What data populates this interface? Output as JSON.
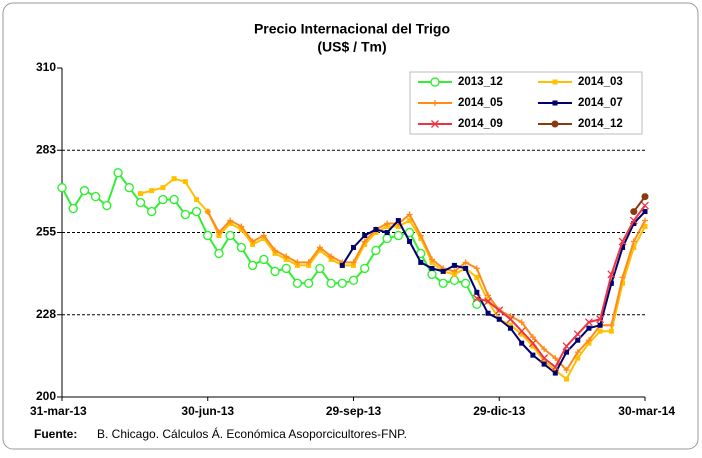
{
  "chart_data": {
    "type": "line",
    "title": "Precio Internacional del Trigo",
    "subtitle": "(US$ / Tm)",
    "categories": [
      "31-mar-13",
      null,
      null,
      null,
      null,
      null,
      null,
      null,
      null,
      null,
      null,
      null,
      null,
      "30-jun-13",
      null,
      null,
      null,
      null,
      null,
      null,
      null,
      null,
      null,
      null,
      null,
      null,
      "29-sep-13",
      null,
      null,
      null,
      null,
      null,
      null,
      null,
      null,
      null,
      null,
      null,
      null,
      "29-dic-13",
      null,
      null,
      null,
      null,
      null,
      null,
      null,
      null,
      null,
      null,
      null,
      null,
      "30-mar-14"
    ],
    "ylim": [
      200,
      310
    ],
    "yticks": [
      200,
      {
        "value": 227.5,
        "label": "228"
      },
      255,
      {
        "value": 282.5,
        "label": "283"
      },
      310
    ],
    "grid": true,
    "legend": "upper right",
    "series": [
      {
        "name": "2013_12",
        "color": "#33ee33",
        "marker": "open-circle",
        "values": [
          270,
          263,
          269,
          267,
          264,
          275,
          270,
          265,
          262,
          266,
          266,
          261,
          262,
          254,
          248,
          254,
          250,
          244,
          246,
          242,
          243,
          238,
          238,
          243,
          238,
          238,
          239,
          243,
          249,
          253,
          254,
          255,
          248,
          241,
          238,
          239,
          238,
          231,
          null,
          null,
          null,
          null,
          null,
          null,
          null,
          null,
          null,
          null,
          null,
          null,
          null,
          null,
          null
        ]
      },
      {
        "name": "2014_03",
        "color": "#ffc000",
        "marker": "square",
        "values": [
          null,
          null,
          null,
          null,
          null,
          null,
          null,
          268,
          269,
          270,
          273,
          272,
          266,
          262,
          254,
          258,
          256,
          251,
          253,
          248,
          246,
          244,
          244,
          249,
          246,
          244,
          244,
          251,
          255,
          257,
          257,
          259,
          253,
          245,
          242,
          241,
          243,
          240,
          232,
          226,
          224,
          221,
          217,
          212,
          209,
          206,
          213,
          218,
          222,
          222,
          238,
          250,
          257
        ]
      },
      {
        "name": "2014_05",
        "color": "#ff8c1a",
        "marker": "dash",
        "values": [
          null,
          null,
          null,
          null,
          null,
          null,
          null,
          null,
          null,
          null,
          null,
          null,
          null,
          262,
          255,
          259,
          257,
          252,
          254,
          249,
          247,
          245,
          245,
          250,
          247,
          245,
          245,
          252,
          256,
          258,
          258,
          261,
          254,
          246,
          243,
          242,
          245,
          243,
          234,
          229,
          227,
          225,
          220,
          216,
          213,
          209,
          215,
          219,
          224,
          224,
          240,
          252,
          259
        ]
      },
      {
        "name": "2014_07",
        "color": "#00006e",
        "marker": "square",
        "values": [
          null,
          null,
          null,
          null,
          null,
          null,
          null,
          null,
          null,
          null,
          null,
          null,
          null,
          null,
          null,
          null,
          null,
          null,
          null,
          null,
          null,
          null,
          null,
          null,
          null,
          244,
          250,
          254,
          256,
          255,
          259,
          252,
          245,
          243,
          242,
          244,
          243,
          235,
          228,
          226,
          223,
          218,
          214,
          211,
          208,
          215,
          219,
          223,
          224,
          238,
          250,
          258,
          262
        ]
      },
      {
        "name": "2014_09",
        "color": "#ee3344",
        "marker": "cross",
        "values": [
          null,
          null,
          null,
          null,
          null,
          null,
          null,
          null,
          null,
          null,
          null,
          null,
          null,
          null,
          null,
          null,
          null,
          null,
          null,
          null,
          null,
          null,
          null,
          null,
          null,
          null,
          null,
          null,
          null,
          null,
          null,
          null,
          null,
          null,
          null,
          null,
          null,
          233,
          232,
          229,
          226,
          222,
          218,
          213,
          210,
          217,
          221,
          225,
          226,
          241,
          252,
          259,
          264
        ]
      },
      {
        "name": "2014_12",
        "color": "#8b3a0f",
        "marker": "filled-circle",
        "values": [
          null,
          null,
          null,
          null,
          null,
          null,
          null,
          null,
          null,
          null,
          null,
          null,
          null,
          null,
          null,
          null,
          null,
          null,
          null,
          null,
          null,
          null,
          null,
          null,
          null,
          null,
          null,
          null,
          null,
          null,
          null,
          null,
          null,
          null,
          null,
          null,
          null,
          null,
          null,
          null,
          null,
          null,
          null,
          null,
          null,
          null,
          null,
          null,
          null,
          null,
          null,
          262,
          267
        ]
      }
    ],
    "source": {
      "label": "Fuente:",
      "text": "B. Chicago. Cálculos Á. Económica Asoporcicultores-FNP."
    }
  }
}
